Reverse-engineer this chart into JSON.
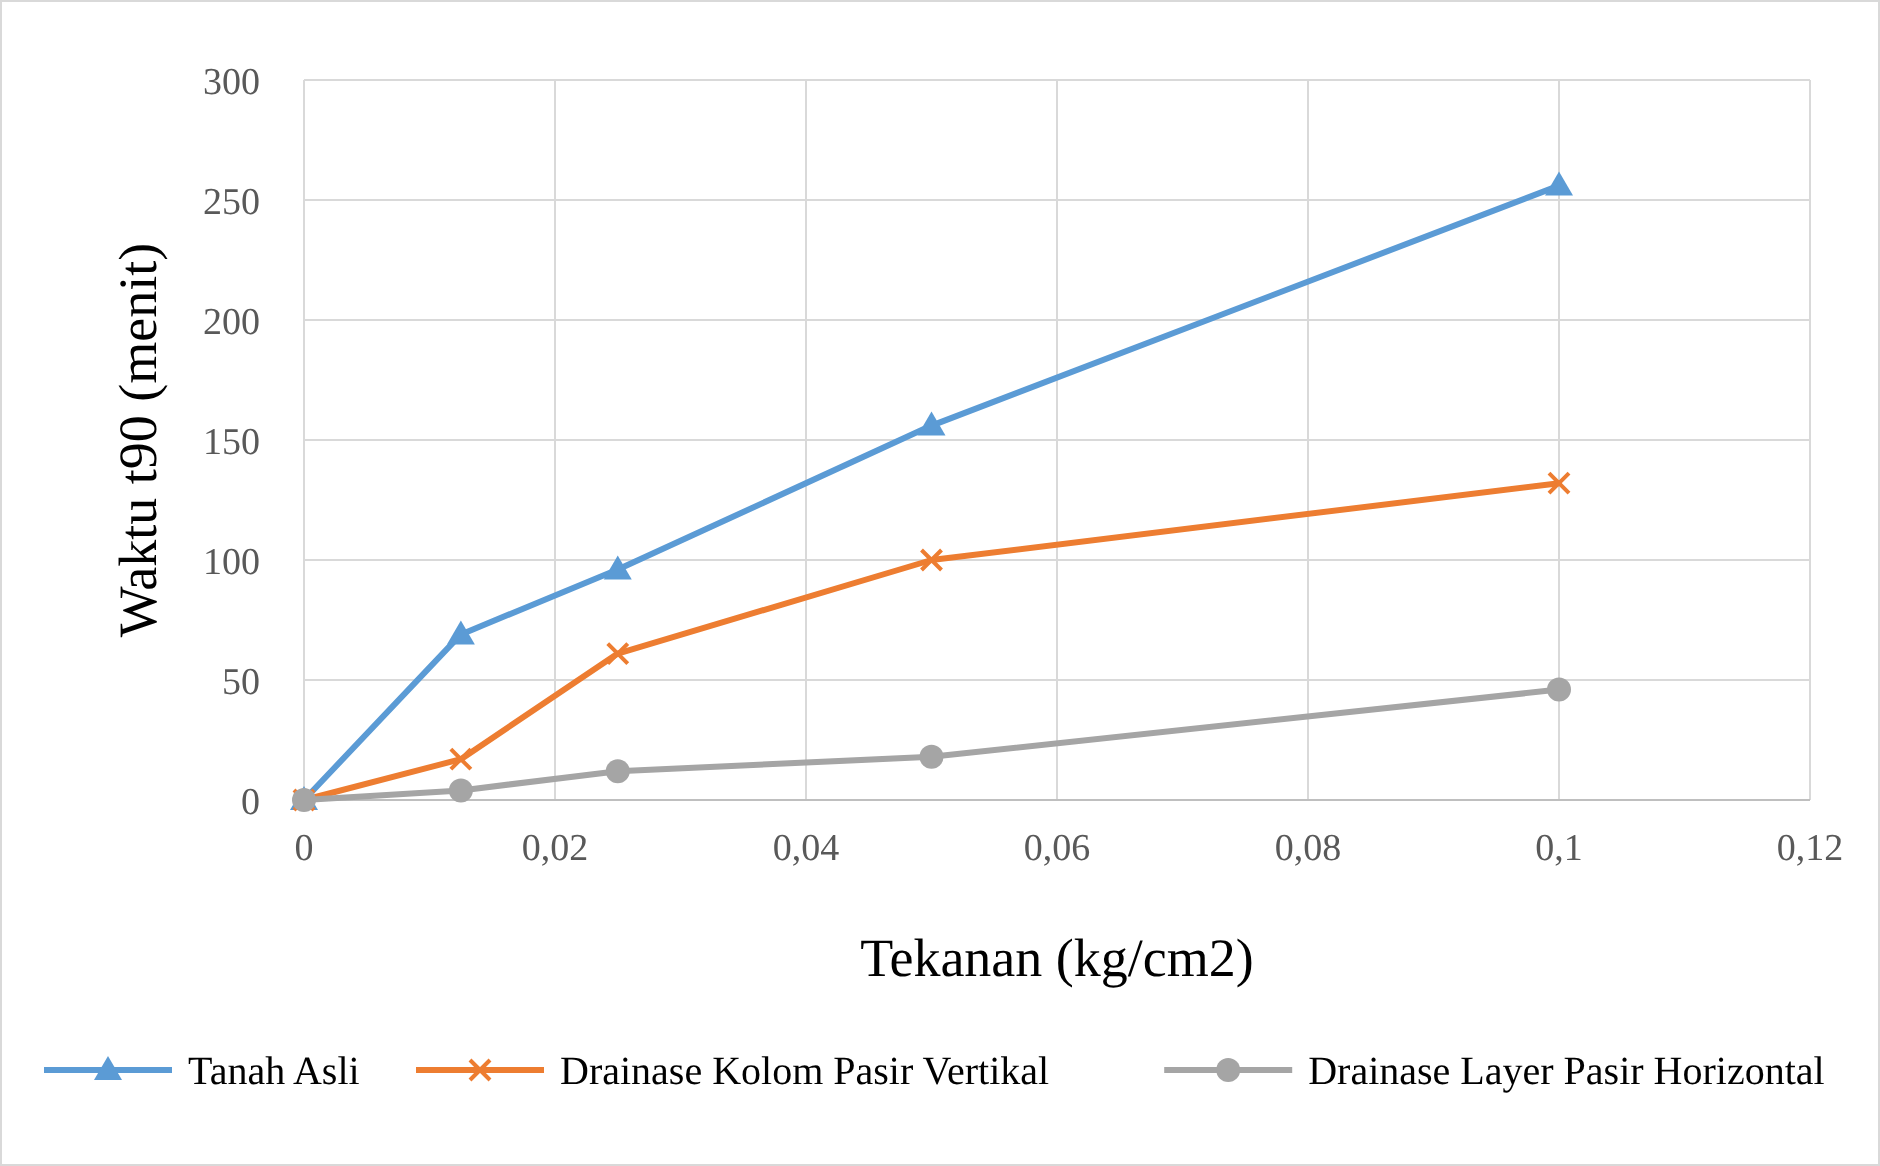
{
  "chart_data": {
    "type": "line",
    "xlabel": "Tekanan (kg/cm2)",
    "ylabel": "Waktu t90 (menit)",
    "x": [
      0,
      0.0125,
      0.025,
      0.05,
      0.1
    ],
    "series": [
      {
        "name": "Tanah Asli",
        "color": "#5b9bd5",
        "marker": "triangle",
        "values": [
          0,
          69,
          96,
          156,
          256
        ]
      },
      {
        "name": "Drainase Kolom Pasir Vertikal",
        "color": "#ed7d31",
        "marker": "cross",
        "values": [
          0,
          17,
          61,
          100,
          132
        ]
      },
      {
        "name": "Drainase Layer Pasir Horizontal",
        "color": "#a5a5a5",
        "marker": "circle",
        "values": [
          0,
          4,
          12,
          18,
          46
        ]
      }
    ],
    "xlim": [
      0,
      0.12
    ],
    "xticks": [
      {
        "value": 0,
        "label": "0"
      },
      {
        "value": 0.02,
        "label": "0,02"
      },
      {
        "value": 0.04,
        "label": "0,04"
      },
      {
        "value": 0.06,
        "label": "0,06"
      },
      {
        "value": 0.08,
        "label": "0,08"
      },
      {
        "value": 0.1,
        "label": "0,1"
      },
      {
        "value": 0.12,
        "label": "0,12"
      }
    ],
    "ylim": [
      0,
      300
    ],
    "yticks": [
      0,
      50,
      100,
      150,
      200,
      250,
      300
    ],
    "grid": true,
    "legend": "bottom",
    "line_style": "solid"
  }
}
